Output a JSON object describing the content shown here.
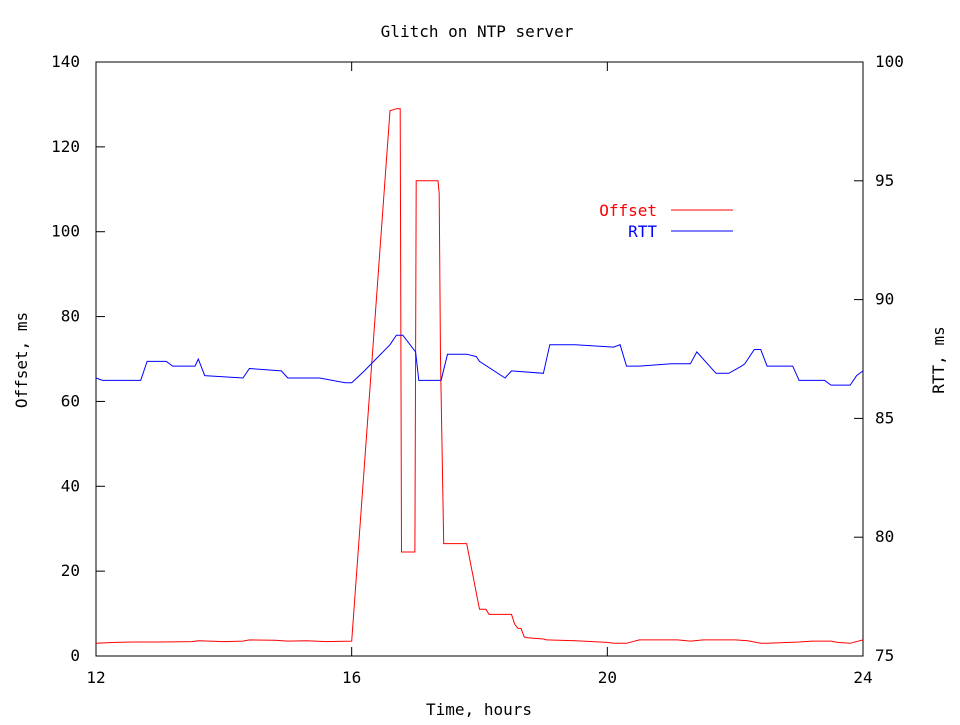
{
  "chart_data": {
    "type": "line",
    "title": "Glitch on NTP server",
    "xlabel": "Time, hours",
    "ylabel_left": "Offset, ms",
    "ylabel_right": "RTT, ms",
    "xlim": [
      12,
      24
    ],
    "ylim_left": [
      0,
      140
    ],
    "ylim_right": [
      75,
      100
    ],
    "x_ticks": [
      12,
      16,
      20,
      24
    ],
    "y_ticks_left": [
      0,
      20,
      40,
      60,
      80,
      100,
      120,
      140
    ],
    "y_ticks_right": [
      75,
      80,
      85,
      90,
      95,
      100
    ],
    "grid": false,
    "legend_position": "upper-right-inside",
    "series": [
      {
        "name": "Offset",
        "axis": "left",
        "color": "#ff0000",
        "x": [
          12.0,
          12.3,
          12.6,
          13.0,
          13.5,
          13.6,
          14.0,
          14.3,
          14.4,
          14.8,
          15.0,
          15.3,
          15.6,
          16.0,
          16.6,
          16.7,
          16.76,
          16.78,
          16.99,
          17.01,
          17.03,
          17.35,
          17.37,
          17.39,
          17.44,
          17.6,
          17.7,
          17.75,
          17.8,
          18.0,
          18.1,
          18.15,
          18.5,
          18.55,
          18.6,
          18.65,
          18.7,
          18.75,
          19.0,
          19.05,
          19.5,
          20.0,
          20.1,
          20.3,
          20.5,
          21.0,
          21.1,
          21.3,
          21.5,
          22.0,
          22.2,
          22.4,
          22.5,
          23.0,
          23.2,
          23.5,
          23.6,
          23.8,
          24.0
        ],
        "y": [
          3.0,
          3.2,
          3.3,
          3.3,
          3.4,
          3.6,
          3.4,
          3.5,
          3.8,
          3.7,
          3.5,
          3.6,
          3.4,
          3.5,
          128.5,
          129.0,
          129.0,
          24.5,
          24.5,
          112.0,
          112.0,
          112.0,
          109.0,
          70.0,
          26.5,
          26.5,
          26.5,
          26.5,
          26.5,
          11.0,
          11.0,
          9.8,
          9.8,
          7.5,
          6.5,
          6.5,
          4.5,
          4.3,
          4.0,
          3.8,
          3.6,
          3.2,
          3.0,
          3.0,
          3.8,
          3.8,
          3.8,
          3.5,
          3.8,
          3.8,
          3.6,
          3.0,
          3.0,
          3.3,
          3.5,
          3.5,
          3.2,
          3.0,
          3.8
        ]
      },
      {
        "name": "RTT",
        "axis": "right",
        "color": "#0000ff",
        "x": [
          12.0,
          12.1,
          12.7,
          12.8,
          13.1,
          13.2,
          13.55,
          13.6,
          13.7,
          14.3,
          14.4,
          14.9,
          15.0,
          15.5,
          15.9,
          16.0,
          16.2,
          16.6,
          16.7,
          16.8,
          17.0,
          17.05,
          17.4,
          17.5,
          17.8,
          17.95,
          18.0,
          18.4,
          18.5,
          19.0,
          19.1,
          19.4,
          19.5,
          20.1,
          20.2,
          20.3,
          20.4,
          20.5,
          21.0,
          21.3,
          21.4,
          21.7,
          21.8,
          21.9,
          22.1,
          22.15,
          22.3,
          22.4,
          22.5,
          22.9,
          23.0,
          23.4,
          23.5,
          23.8,
          23.9,
          24.0
        ],
        "y": [
          86.7,
          86.6,
          86.6,
          87.4,
          87.4,
          87.2,
          87.2,
          87.5,
          86.8,
          86.7,
          87.1,
          87.0,
          86.7,
          86.7,
          86.5,
          86.5,
          87.0,
          88.1,
          88.5,
          88.5,
          87.8,
          86.6,
          86.6,
          87.7,
          87.7,
          87.6,
          87.4,
          86.7,
          87.0,
          86.9,
          88.1,
          88.1,
          88.1,
          88.0,
          88.1,
          87.2,
          87.2,
          87.2,
          87.3,
          87.3,
          87.8,
          86.9,
          86.9,
          86.9,
          87.2,
          87.3,
          87.9,
          87.9,
          87.2,
          87.2,
          86.6,
          86.6,
          86.4,
          86.4,
          86.8,
          87.0
        ]
      }
    ]
  }
}
